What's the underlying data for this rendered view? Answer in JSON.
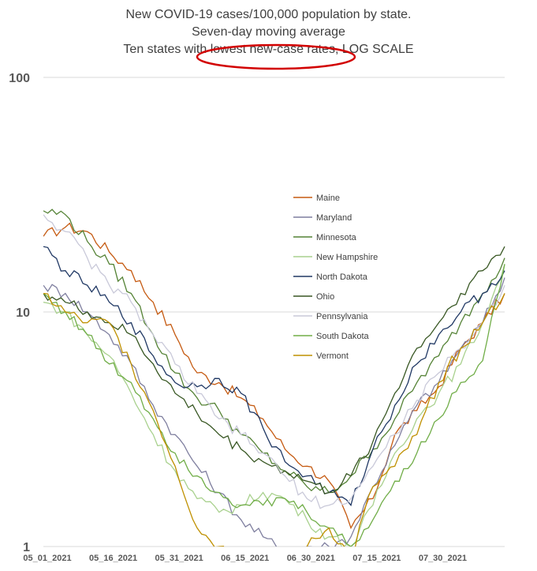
{
  "titles": [
    "New COVID-19 cases/100,000 population by state.",
    "Seven-day moving average",
    "Ten states with lowest new-case rates, LOG SCALE"
  ],
  "chart_data": {
    "type": "line",
    "title": "New COVID-19 cases/100,000 population by state. Seven-day moving average Ten states with lowest new-case rates, LOG SCALE",
    "xlabel": "",
    "ylabel": "",
    "y_scale": "log",
    "ylim": [
      1,
      100
    ],
    "y_ticks": [
      "1",
      "10",
      "100"
    ],
    "x_ticks": [
      "05_01_2021",
      "05_16_2021",
      "05_31_2021",
      "06_15_2021",
      "06_30_2021",
      "07_15_2021",
      "07_30_2021"
    ],
    "grid": "horizontal",
    "legend_position": "center-right",
    "annotation": "red ellipse highlighting 'lowest new-case rates'",
    "x": [
      "05_01_2021",
      "05_06_2021",
      "05_11_2021",
      "05_16_2021",
      "05_21_2021",
      "05_26_2021",
      "05_31_2021",
      "06_05_2021",
      "06_10_2021",
      "06_15_2021",
      "06_20_2021",
      "06_25_2021",
      "06_30_2021",
      "07_05_2021",
      "07_10_2021",
      "07_15_2021",
      "07_20_2021",
      "07_25_2021",
      "07_30_2021",
      "08_04_2021",
      "08_09_2021",
      "08_13_2021"
    ],
    "series": [
      {
        "name": "Maine",
        "color": "#c55a11",
        "values": [
          21,
          23,
          22,
          18,
          15,
          11,
          8,
          5.5,
          5,
          4.3,
          3.5,
          2.6,
          2.2,
          1.9,
          1.2,
          1.6,
          3,
          3.8,
          4.8,
          7,
          9,
          12
        ]
      },
      {
        "name": "Maryland",
        "color": "#7f7f9f",
        "values": [
          13,
          12,
          10,
          8,
          6,
          4,
          3,
          2.2,
          1.7,
          1.3,
          1.1,
          0.95,
          1,
          1,
          1.1,
          1.8,
          2.7,
          4,
          5,
          7,
          9,
          14
        ]
      },
      {
        "name": "Minnesota",
        "color": "#548235",
        "values": [
          27,
          26,
          20,
          16,
          12,
          8,
          5.5,
          4.3,
          3.8,
          3,
          2.5,
          2.1,
          1.8,
          1.7,
          2,
          2.6,
          3.5,
          5,
          6.5,
          9,
          12,
          17
        ]
      },
      {
        "name": "New Hampshire",
        "color": "#a9d18e",
        "values": [
          11,
          10,
          8,
          6.5,
          4.5,
          3,
          2.1,
          1.6,
          1.4,
          1.5,
          1.7,
          1.6,
          1.3,
          1.1,
          1,
          1.5,
          2.5,
          3.5,
          4.5,
          6,
          9,
          16
        ]
      },
      {
        "name": "North Dakota",
        "color": "#203864",
        "values": [
          19,
          15,
          13,
          11,
          9,
          6.5,
          5,
          4.8,
          5.2,
          4.5,
          3.2,
          2.3,
          2,
          1.7,
          1.5,
          2.6,
          4,
          6,
          8,
          10,
          12,
          15
        ]
      },
      {
        "name": "Ohio",
        "color": "#385723",
        "values": [
          12,
          11,
          10,
          9,
          8,
          6,
          4.5,
          3.7,
          3,
          2.6,
          2.3,
          2.1,
          1.9,
          1.7,
          2,
          2.8,
          4.5,
          7,
          9,
          12,
          15,
          19
        ]
      },
      {
        "name": "Pennsylvania",
        "color": "#c9c9d9",
        "values": [
          26,
          22,
          17,
          13,
          11,
          8,
          6,
          4.5,
          3.5,
          3,
          2.5,
          2,
          1.6,
          1.5,
          1.6,
          2.2,
          3,
          4.2,
          5.5,
          7,
          9,
          13
        ]
      },
      {
        "name": "South Dakota",
        "color": "#70ad47",
        "values": [
          12,
          10,
          8,
          6,
          5,
          3.5,
          2.5,
          2,
          1.7,
          1.5,
          1.5,
          1.6,
          1.4,
          1.2,
          1,
          1.3,
          1.9,
          2.5,
          3.5,
          5,
          6.2,
          16
        ]
      },
      {
        "name": "Vermont",
        "color": "#bf9000",
        "values": [
          12,
          10,
          9,
          9,
          6,
          3.8,
          2.2,
          1.2,
          1,
          0.9,
          0.85,
          0.9,
          1,
          1.2,
          0.9,
          1.8,
          2.2,
          3,
          5,
          7,
          9,
          12
        ]
      }
    ]
  }
}
